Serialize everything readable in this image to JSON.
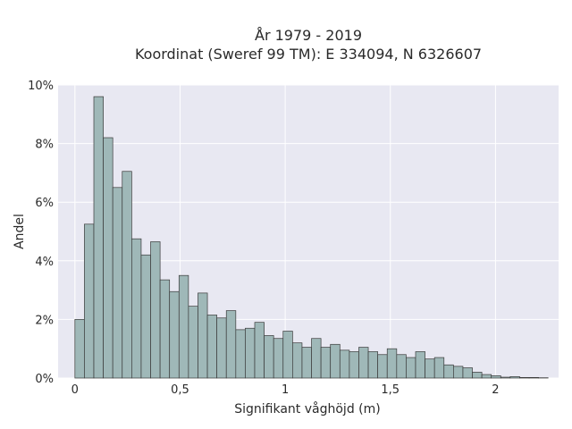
{
  "chart_data": {
    "type": "bar",
    "title_lines": [
      "År 1979 - 2019",
      "Koordinat (Sweref 99 TM): E 334094, N 6326607"
    ],
    "xlabel": "Signifikant våghöjd (m)",
    "ylabel": "Andel",
    "xlim": [
      -0.08,
      2.3
    ],
    "ylim": [
      0,
      10
    ],
    "x_ticks": [
      0,
      0.5,
      1,
      1.5,
      2
    ],
    "x_tick_labels": [
      "0",
      "0,5",
      "1",
      "1,5",
      "2"
    ],
    "y_ticks": [
      0,
      2,
      4,
      6,
      8,
      10
    ],
    "y_tick_labels": [
      "0%",
      "2%",
      "4%",
      "6%",
      "8%",
      "10%"
    ],
    "grid": true,
    "bin_width": 0.045,
    "bin_start": 0.0,
    "values": [
      2.0,
      5.25,
      9.6,
      8.2,
      6.5,
      7.05,
      4.75,
      4.2,
      4.65,
      3.35,
      2.95,
      3.5,
      2.45,
      2.9,
      2.15,
      2.05,
      2.3,
      1.65,
      1.7,
      1.9,
      1.45,
      1.35,
      1.6,
      1.2,
      1.05,
      1.35,
      1.05,
      1.15,
      0.95,
      0.9,
      1.05,
      0.9,
      0.8,
      1.0,
      0.8,
      0.7,
      0.9,
      0.65,
      0.7,
      0.45,
      0.4,
      0.35,
      0.2,
      0.12,
      0.08,
      0.03,
      0.05,
      0.02,
      0.02,
      0.01
    ],
    "colors": {
      "plot_background": "#e8e8f2",
      "bar_fill": "#9fb8b8",
      "bar_stroke": "#3a3a3a",
      "grid": "#ffffff"
    }
  }
}
